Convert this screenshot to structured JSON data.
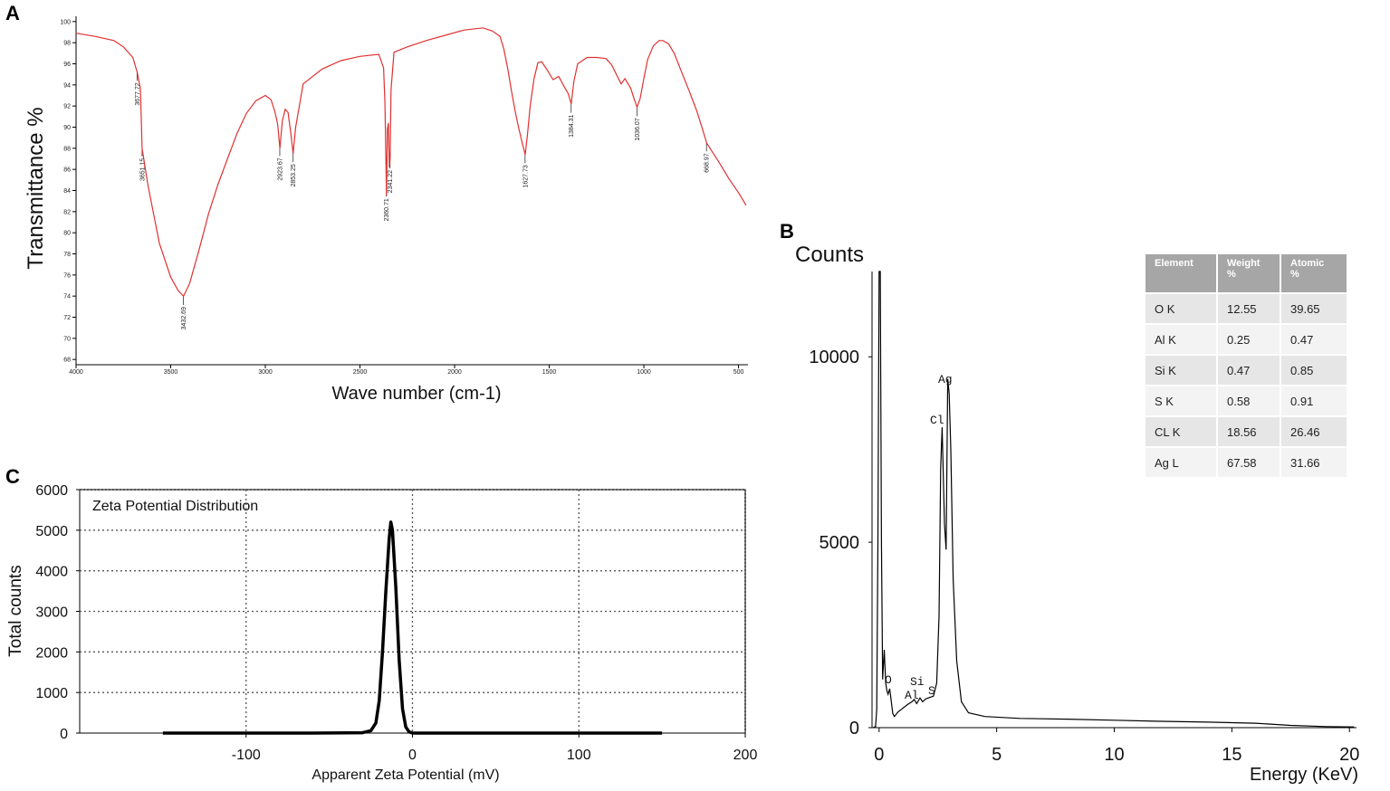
{
  "panels": {
    "a": "A",
    "b": "B",
    "c": "C"
  },
  "colors": {
    "ftir_line": "#e03131",
    "black": "#000000",
    "grid": "#888888"
  },
  "chart_data": [
    {
      "id": "ftir",
      "type": "line",
      "xlabel": "Wave number (cm-1)",
      "ylabel": "Transmittance %",
      "xlim": [
        4000,
        450
      ],
      "ylim": [
        67.5,
        100.5
      ],
      "x_ticks": [
        "4000",
        "3500",
        "3000",
        "2500",
        "2000",
        "1500",
        "1000",
        "500"
      ],
      "y_ticks": [
        "68",
        "70",
        "72",
        "74",
        "76",
        "78",
        "80",
        "82",
        "84",
        "86",
        "88",
        "90",
        "92",
        "94",
        "96",
        "98",
        "100"
      ],
      "series": [
        {
          "x": [
            4000,
            3900,
            3800,
            3750,
            3700,
            3677,
            3660,
            3651,
            3620,
            3560,
            3500,
            3460,
            3432,
            3400,
            3350,
            3300,
            3250,
            3200,
            3150,
            3100,
            3050,
            3000,
            2970,
            2950,
            2935,
            2923,
            2910,
            2895,
            2880,
            2865,
            2853,
            2840,
            2800,
            2700,
            2600,
            2500,
            2400,
            2375,
            2368,
            2360,
            2355,
            2350,
            2345,
            2341,
            2336,
            2320,
            2250,
            2150,
            2050,
            1950,
            1850,
            1800,
            1760,
            1740,
            1720,
            1700,
            1680,
            1660,
            1640,
            1627,
            1615,
            1600,
            1580,
            1560,
            1540,
            1510,
            1480,
            1450,
            1420,
            1400,
            1384,
            1370,
            1350,
            1300,
            1250,
            1200,
            1170,
            1140,
            1120,
            1100,
            1070,
            1050,
            1036,
            1020,
            1000,
            980,
            950,
            920,
            900,
            870,
            840,
            800,
            760,
            720,
            690,
            668,
            640,
            600,
            550,
            500,
            460
          ],
          "y": [
            98.9,
            98.6,
            98.2,
            97.6,
            96.6,
            95.2,
            93.6,
            88.0,
            84.5,
            79.0,
            75.8,
            74.5,
            74.0,
            75.2,
            78.4,
            81.8,
            84.6,
            87.0,
            89.4,
            91.3,
            92.5,
            93.0,
            92.6,
            91.5,
            90.3,
            88.0,
            90.6,
            91.7,
            91.4,
            89.4,
            87.5,
            90.0,
            94.1,
            95.5,
            96.3,
            96.7,
            96.9,
            95.6,
            92.3,
            83.5,
            89.8,
            90.4,
            86.2,
            87.0,
            93.5,
            97.1,
            97.6,
            98.2,
            98.7,
            99.2,
            99.4,
            99.1,
            98.6,
            97.4,
            95.6,
            93.5,
            91.5,
            89.8,
            88.3,
            87.4,
            89.3,
            92.1,
            94.6,
            96.1,
            96.2,
            95.4,
            94.5,
            94.8,
            93.8,
            93.2,
            92.2,
            94.3,
            96.0,
            96.6,
            96.6,
            96.5,
            95.9,
            94.8,
            94.1,
            94.6,
            93.7,
            92.6,
            91.9,
            92.7,
            94.6,
            96.4,
            97.7,
            98.2,
            98.2,
            97.9,
            97.0,
            95.2,
            93.4,
            91.5,
            89.8,
            88.5,
            87.7,
            86.6,
            85.1,
            83.8,
            82.6
          ]
        }
      ],
      "annotations": [
        "3677.72",
        "3651.15",
        "3432.69",
        "2923.67",
        "2853.25",
        "2360.71",
        "2341.22",
        "1627.73",
        "1384.31",
        "1036.07",
        "668.97"
      ]
    },
    {
      "id": "eds",
      "type": "line",
      "xlabel": "Energy (KeV)",
      "ylabel": "Counts",
      "xlim": [
        -0.3,
        20.3
      ],
      "ylim": [
        0,
        12300
      ],
      "x_ticks": [
        "0",
        "5",
        "10",
        "15",
        "20"
      ],
      "y_ticks": [
        "0",
        "5000",
        "10000"
      ],
      "series": [
        {
          "x": [
            -0.25,
            -0.15,
            -0.1,
            -0.05,
            0.0,
            0.05,
            0.1,
            0.15,
            0.22,
            0.28,
            0.33,
            0.38,
            0.45,
            0.52,
            0.58,
            0.65,
            0.8,
            1.0,
            1.2,
            1.4,
            1.49,
            1.6,
            1.74,
            1.85,
            2.0,
            2.31,
            2.45,
            2.55,
            2.62,
            2.68,
            2.78,
            2.85,
            2.92,
            2.98,
            3.05,
            3.15,
            3.3,
            3.5,
            3.8,
            4.5,
            6.0,
            8.0,
            10.0,
            12.0,
            14.0,
            16.0,
            17.5,
            19.0,
            20.2
          ],
          "y": [
            0,
            30,
            500,
            5000,
            12500,
            12500,
            5000,
            1300,
            2100,
            1200,
            1000,
            900,
            1050,
            700,
            380,
            300,
            420,
            520,
            620,
            700,
            760,
            650,
            800,
            700,
            780,
            850,
            1200,
            3000,
            7000,
            8100,
            5500,
            4800,
            9400,
            9000,
            7500,
            4000,
            1800,
            700,
            400,
            300,
            250,
            230,
            200,
            170,
            150,
            120,
            60,
            30,
            20
          ]
        }
      ],
      "peak_labels": [
        "O",
        "Al",
        "Si",
        "S",
        "Cl",
        "Ag"
      ]
    },
    {
      "id": "zeta",
      "type": "line",
      "title": "Zeta Potential Distribution",
      "xlabel": "Apparent Zeta Potential (mV)",
      "ylabel": "Total counts",
      "xlim": [
        -200,
        200
      ],
      "ylim": [
        0,
        6000
      ],
      "grid": true,
      "x_ticks": [
        "-100",
        "0",
        "100",
        "200"
      ],
      "y_ticks": [
        "0",
        "1000",
        "2000",
        "3000",
        "4000",
        "5000",
        "6000"
      ],
      "series": [
        {
          "x": [
            -150,
            -60,
            -30,
            -25,
            -22,
            -20,
            -18,
            -16,
            -14,
            -13,
            -12,
            -10,
            -8,
            -6,
            -4,
            -2,
            0,
            150
          ],
          "y": [
            0,
            0,
            10,
            60,
            250,
            800,
            2000,
            3500,
            4800,
            5200,
            5000,
            3600,
            1800,
            600,
            150,
            30,
            0,
            0
          ]
        }
      ]
    }
  ],
  "eds_table": {
    "headers": [
      [
        "Element",
        ""
      ],
      [
        "Weight",
        "%"
      ],
      [
        "Atomic",
        "%"
      ]
    ],
    "rows": [
      [
        "O  K",
        "12.55",
        "39.65"
      ],
      [
        "Al  K",
        "0.25",
        "0.47"
      ],
      [
        "Si K",
        "0.47",
        "0.85"
      ],
      [
        "S K",
        "0.58",
        "0.91"
      ],
      [
        "CL K",
        "18.56",
        "26.46"
      ],
      [
        "Ag L",
        "67.58",
        "31.66"
      ]
    ]
  }
}
